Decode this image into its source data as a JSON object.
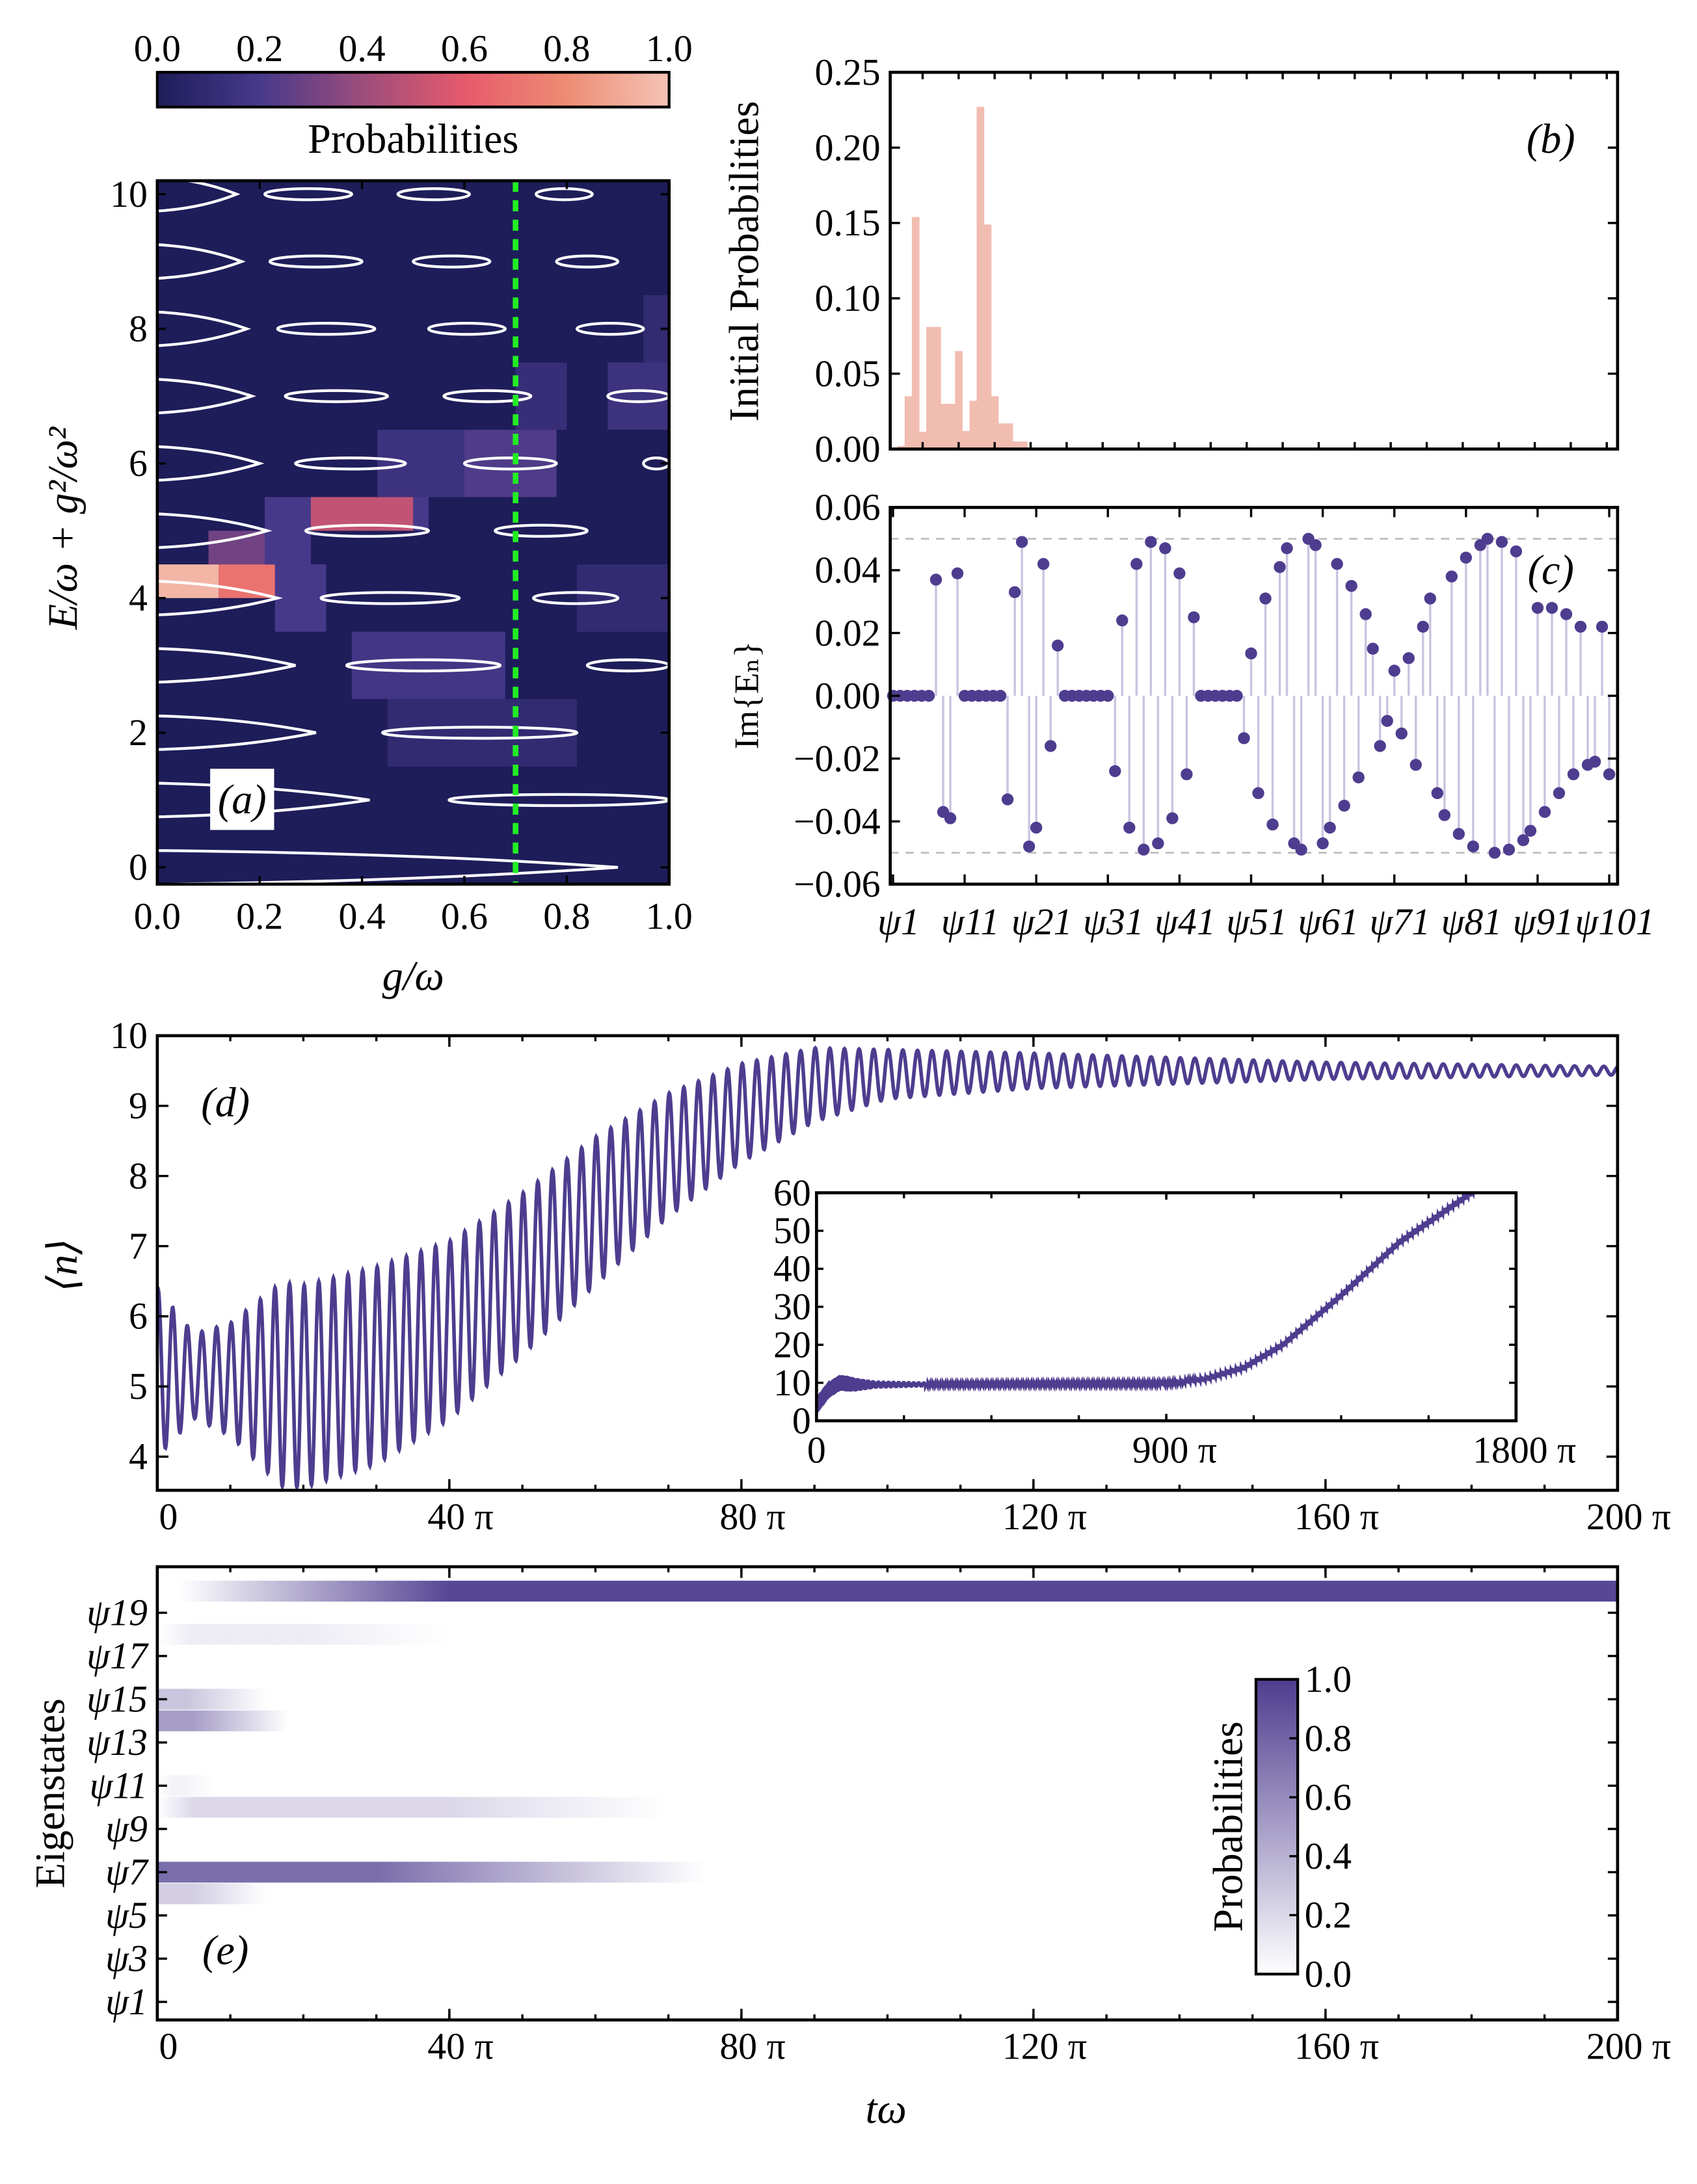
{
  "colors": {
    "purple": "#4e3d8f",
    "stem": "#c9c4e0",
    "bar": "#f2bdb1",
    "green_dash": "#22ee22",
    "heat_stops": [
      "#1e1d5a",
      "#47398a",
      "#9c4d7c",
      "#e65a6b",
      "#ee8c74",
      "#f4c4b6"
    ]
  },
  "chart_data": [
    {
      "panel": "a",
      "type": "heatmap",
      "panel_label": "(a)",
      "xlabel": "g/ω",
      "ylabel": "E/ω + g²/ω²",
      "xlim": [
        0,
        1
      ],
      "ylim": [
        -0.25,
        10.2
      ],
      "xticks": [
        "0.0",
        "0.2",
        "0.4",
        "0.6",
        "0.8",
        "1.0"
      ],
      "yticks": [
        "0",
        "2",
        "4",
        "6",
        "8",
        "10"
      ],
      "colorbar": {
        "label": "Probabilities",
        "ticks": [
          "0.0",
          "0.2",
          "0.4",
          "0.6",
          "0.8",
          "1.0"
        ]
      },
      "marker_line_g": 0.7,
      "cells": [
        [
          0,
          0.12,
          4.0,
          4.5,
          0.95
        ],
        [
          0.12,
          0.23,
          4.0,
          4.5,
          0.7
        ],
        [
          0.1,
          0.21,
          4.5,
          5.0,
          0.3
        ],
        [
          0.21,
          0.3,
          4.5,
          5.5,
          0.2
        ],
        [
          0.3,
          0.5,
          5.0,
          5.5,
          0.5
        ],
        [
          0.5,
          0.53,
          5.0,
          5.5,
          0.2
        ],
        [
          0.23,
          0.33,
          3.5,
          4.5,
          0.2
        ],
        [
          0.38,
          0.68,
          2.5,
          3.5,
          0.18
        ],
        [
          0.43,
          0.6,
          5.5,
          6.5,
          0.15
        ],
        [
          0.6,
          0.78,
          5.5,
          6.5,
          0.22
        ],
        [
          0.7,
          0.8,
          6.5,
          7.5,
          0.12
        ],
        [
          0.88,
          1.0,
          6.5,
          7.5,
          0.15
        ],
        [
          0.45,
          0.82,
          1.5,
          2.5,
          0.1
        ],
        [
          0.82,
          1.0,
          3.5,
          4.5,
          0.1
        ],
        [
          0.95,
          1.0,
          7.5,
          8.5,
          0.1
        ]
      ],
      "contours": [
        {
          "E": 10,
          "open": 0.155,
          "islands": [
            [
              0.21,
              0.38
            ],
            [
              0.47,
              0.61
            ],
            [
              0.74,
              0.85
            ]
          ]
        },
        {
          "E": 9,
          "open": 0.165,
          "islands": [
            [
              0.22,
              0.4
            ],
            [
              0.5,
              0.65
            ],
            [
              0.78,
              0.9
            ]
          ]
        },
        {
          "E": 8,
          "open": 0.175,
          "islands": [
            [
              0.235,
              0.425
            ],
            [
              0.53,
              0.68
            ],
            [
              0.82,
              0.95
            ]
          ]
        },
        {
          "E": 7,
          "open": 0.185,
          "islands": [
            [
              0.25,
              0.45
            ],
            [
              0.56,
              0.73
            ],
            [
              0.88,
              1.0
            ]
          ]
        },
        {
          "E": 6,
          "open": 0.2,
          "islands": [
            [
              0.27,
              0.485
            ],
            [
              0.6,
              0.78
            ],
            [
              0.95,
              1.0
            ]
          ]
        },
        {
          "E": 5,
          "open": 0.215,
          "islands": [
            [
              0.29,
              0.53
            ],
            [
              0.66,
              0.84
            ]
          ]
        },
        {
          "E": 4,
          "open": 0.235,
          "islands": [
            [
              0.32,
              0.59
            ],
            [
              0.735,
              0.9
            ]
          ]
        },
        {
          "E": 3,
          "open": 0.27,
          "islands": [
            [
              0.37,
              0.67
            ],
            [
              0.84,
              1.0
            ]
          ]
        },
        {
          "E": 2,
          "open": 0.31,
          "islands": [
            [
              0.44,
              0.82
            ]
          ]
        },
        {
          "E": 1,
          "open": 0.415,
          "islands": [
            [
              0.57,
              1.0
            ]
          ]
        },
        {
          "E": 0,
          "open": 0.9,
          "islands": []
        }
      ]
    },
    {
      "panel": "b",
      "type": "bar",
      "panel_label": "(b)",
      "ylabel": "Initial Probabilities",
      "ylim": [
        0,
        0.25
      ],
      "xlim": [
        0.5,
        101.5
      ],
      "yticks": [
        "0.00",
        "0.05",
        "0.10",
        "0.15",
        "0.20",
        "0.25"
      ],
      "values": [
        0.001,
        0.002,
        0.035,
        0.154,
        0.0115,
        0.081,
        0.081,
        0.03,
        0.03,
        0.065,
        0.012,
        0.032,
        0.227,
        0.149,
        0.035,
        0.017,
        0.017,
        0.005,
        0.005
      ]
    },
    {
      "panel": "c",
      "type": "scatter",
      "style": "stem",
      "panel_label": "(c)",
      "ylabel": "Im{Eₙ}",
      "ylim": [
        -0.06,
        0.06
      ],
      "xlim": [
        1,
        101
      ],
      "reference_lines": [
        0.05,
        -0.05
      ],
      "yticks": [
        "−0.06",
        "−0.04",
        "−0.02",
        "0.00",
        "0.02",
        "0.04",
        "0.06"
      ],
      "xticks": [
        "ψ1",
        "ψ11",
        "ψ21",
        "ψ31",
        "ψ41",
        "ψ51",
        "ψ61",
        "ψ71",
        "ψ81",
        "ψ91",
        "ψ101"
      ],
      "values": [
        0,
        0,
        0,
        0,
        0,
        0,
        0.037,
        -0.037,
        -0.039,
        0.039,
        0,
        0,
        0,
        0,
        0,
        0,
        -0.033,
        0.033,
        0.049,
        -0.048,
        -0.042,
        0.042,
        -0.016,
        0.016,
        0,
        0,
        0,
        0,
        0,
        0,
        0,
        -0.024,
        0.024,
        -0.042,
        0.042,
        -0.049,
        0.049,
        -0.047,
        0.047,
        -0.039,
        0.039,
        -0.025,
        0.025,
        0,
        0,
        0,
        0,
        0,
        0,
        -0.0135,
        0.0135,
        -0.031,
        0.031,
        -0.041,
        0.041,
        0.047,
        -0.047,
        -0.049,
        0.05,
        0.048,
        -0.047,
        -0.042,
        0.042,
        -0.035,
        0.035,
        -0.026,
        0.026,
        0.015,
        -0.016,
        -0.008,
        0.008,
        -0.012,
        0.012,
        -0.022,
        0.022,
        0.031,
        -0.031,
        -0.038,
        0.038,
        -0.044,
        0.044,
        -0.048,
        0.048,
        0.05,
        -0.05,
        0.049,
        -0.049,
        0.046,
        -0.046,
        -0.043,
        0.028,
        -0.037,
        0.028,
        -0.031,
        0.026,
        -0.025,
        0.022,
        -0.022,
        -0.021,
        0.022,
        -0.025
      ]
    },
    {
      "panel": "d",
      "type": "line",
      "panel_label": "(d)",
      "ylabel": "⟨n⟩",
      "xlim_pi": [
        0,
        200
      ],
      "ylim": [
        3.52,
        10
      ],
      "xticks": [
        "0",
        "40 π",
        "80 π",
        "120 π",
        "160 π",
        "200 π"
      ],
      "yticks": [
        "4",
        "5",
        "6",
        "7",
        "8",
        "9",
        "10"
      ],
      "oscillation_period_pi": 2,
      "mean": [
        [
          0,
          5.2
        ],
        [
          10,
          5.1
        ],
        [
          20,
          5.0
        ],
        [
          30,
          5.3
        ],
        [
          40,
          5.8
        ],
        [
          50,
          6.6
        ],
        [
          60,
          7.5
        ],
        [
          70,
          8.3
        ],
        [
          80,
          8.9
        ],
        [
          90,
          9.3
        ],
        [
          100,
          9.45
        ],
        [
          120,
          9.5
        ],
        [
          200,
          9.5
        ]
      ],
      "amplitude": [
        [
          0,
          1.2
        ],
        [
          5,
          0.6
        ],
        [
          10,
          0.8
        ],
        [
          17,
          1.45
        ],
        [
          30,
          1.4
        ],
        [
          45,
          1.2
        ],
        [
          60,
          1.05
        ],
        [
          80,
          0.7
        ],
        [
          100,
          0.35
        ],
        [
          120,
          0.25
        ],
        [
          160,
          0.12
        ],
        [
          200,
          0.06
        ]
      ],
      "inset": {
        "type": "line",
        "xlim_pi": [
          0,
          1800
        ],
        "ylim": [
          0,
          60
        ],
        "xticks": [
          "0",
          "900 π",
          "1800 π"
        ],
        "yticks": [
          "0",
          "10",
          "20",
          "30",
          "40",
          "50",
          "60"
        ],
        "mean": [
          [
            0,
            4
          ],
          [
            30,
            8
          ],
          [
            60,
            10
          ],
          [
            100,
            9.5
          ],
          [
            900,
            9.8
          ],
          [
            1000,
            11
          ],
          [
            1100,
            14
          ],
          [
            1200,
            20
          ],
          [
            1350,
            33
          ],
          [
            1500,
            47
          ],
          [
            1700,
            61
          ]
        ],
        "amplitude": [
          [
            0,
            2
          ],
          [
            80,
            2
          ],
          [
            150,
            0.8
          ],
          [
            300,
            0.4
          ],
          [
            1800,
            0.5
          ]
        ]
      }
    },
    {
      "panel": "e",
      "type": "heatmap",
      "panel_label": "(e)",
      "xlabel": "tω",
      "ylabel": "Eigenstates",
      "xlim_pi": [
        0,
        200
      ],
      "xticks": [
        "0",
        "40 π",
        "80 π",
        "120 π",
        "160 π",
        "200 π"
      ],
      "yticks": [
        "ψ1",
        "ψ3",
        "ψ5",
        "ψ7",
        "ψ9",
        "ψ11",
        "ψ13",
        "ψ15",
        "ψ17",
        "ψ19"
      ],
      "colorbar": {
        "label": "Probabilities",
        "ticks": [
          "0.0",
          "0.2",
          "0.4",
          "0.6",
          "0.8",
          "1.0"
        ]
      },
      "bands": [
        {
          "state": 20,
          "fade_in_start": 3,
          "full_start": 40,
          "full_end": 200,
          "fade_out_end": 200,
          "p": 0.95
        },
        {
          "state": 18,
          "fade_in_start": 0,
          "full_start": 5,
          "full_end": 20,
          "fade_out_end": 40,
          "p": 0.1
        },
        {
          "state": 15,
          "fade_in_start": 0,
          "full_start": 0,
          "full_end": 4,
          "fade_out_end": 15,
          "p": 0.3
        },
        {
          "state": 14,
          "fade_in_start": 0,
          "full_start": 0,
          "full_end": 5,
          "fade_out_end": 18,
          "p": 0.5
        },
        {
          "state": 11,
          "fade_in_start": 0,
          "full_start": 2,
          "full_end": 4,
          "fade_out_end": 8,
          "p": 0.06
        },
        {
          "state": 10,
          "fade_in_start": 0,
          "full_start": 5,
          "full_end": 40,
          "fade_out_end": 70,
          "p": 0.2
        },
        {
          "state": 7,
          "fade_in_start": 0,
          "full_start": 0,
          "full_end": 30,
          "fade_out_end": 75,
          "p": 0.75
        },
        {
          "state": 6,
          "fade_in_start": 0,
          "full_start": 0,
          "full_end": 5,
          "fade_out_end": 15,
          "p": 0.25
        }
      ]
    }
  ]
}
